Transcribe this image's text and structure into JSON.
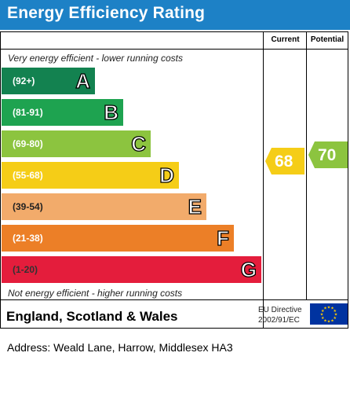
{
  "header": {
    "title": "Energy Efficiency Rating"
  },
  "columns": {
    "current": "Current",
    "potential": "Potential"
  },
  "notes": {
    "top": "Very energy efficient - lower running costs",
    "bottom": "Not energy efficient - higher running costs"
  },
  "bands": [
    {
      "range": "(92+)",
      "letter": "A",
      "color": "#138250"
    },
    {
      "range": "(81-91)",
      "letter": "B",
      "color": "#1ea350"
    },
    {
      "range": "(69-80)",
      "letter": "C",
      "color": "#8cc43f"
    },
    {
      "range": "(55-68)",
      "letter": "D",
      "color": "#f5cd17"
    },
    {
      "range": "(39-54)",
      "letter": "E",
      "color": "#f2ab6b"
    },
    {
      "range": "(21-38)",
      "letter": "F",
      "color": "#ec7f27"
    },
    {
      "range": "(1-20)",
      "letter": "G",
      "color": "#e41d3c"
    }
  ],
  "current": {
    "value": "68",
    "color": "#f5cd17"
  },
  "potential": {
    "value": "70",
    "color": "#8cc43f"
  },
  "footer": {
    "region": "England, Scotland & Wales",
    "directive_line1": "EU Directive",
    "directive_line2": "2002/91/EC",
    "flag_icon": "eu-flag-icon"
  },
  "address": "Address: Weald Lane, Harrow, Middlesex HA3"
}
